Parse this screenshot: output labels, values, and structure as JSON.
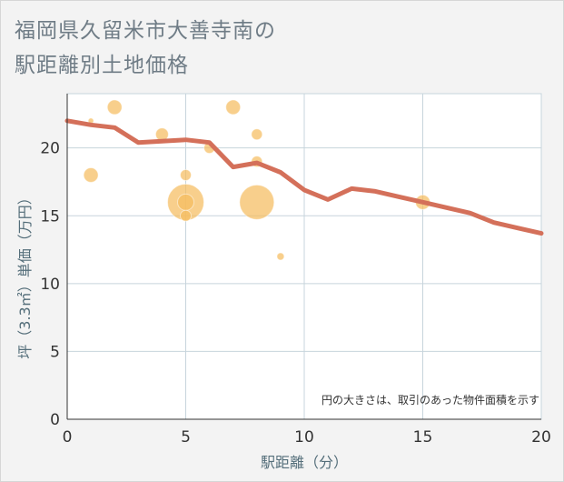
{
  "title_line1": "福岡県久留米市大善寺南の",
  "title_line2": "駅距離別土地価格",
  "chart_data": {
    "type": "scatter+line",
    "xlabel": "駅距離（分）",
    "ylabel": "坪（3.3㎡）単価（万円）",
    "xlim": [
      0,
      20
    ],
    "ylim": [
      0,
      24
    ],
    "x_ticks": [
      0,
      5,
      10,
      15,
      20
    ],
    "y_ticks": [
      0,
      5,
      10,
      15,
      20
    ],
    "note": "円の大きさは、取引のあった物件面積を示す",
    "scatter": [
      {
        "x": 1,
        "y": 22,
        "size": 3
      },
      {
        "x": 1,
        "y": 18,
        "size": 8
      },
      {
        "x": 2,
        "y": 23,
        "size": 8
      },
      {
        "x": 4,
        "y": 21,
        "size": 7
      },
      {
        "x": 5,
        "y": 18,
        "size": 6
      },
      {
        "x": 5,
        "y": 16,
        "size": 20
      },
      {
        "x": 5,
        "y": 16,
        "size": 9
      },
      {
        "x": 5,
        "y": 15,
        "size": 6
      },
      {
        "x": 6,
        "y": 20,
        "size": 6
      },
      {
        "x": 7,
        "y": 23,
        "size": 8
      },
      {
        "x": 8,
        "y": 21,
        "size": 6
      },
      {
        "x": 8,
        "y": 19,
        "size": 6
      },
      {
        "x": 8,
        "y": 16,
        "size": 19
      },
      {
        "x": 9,
        "y": 12,
        "size": 4
      },
      {
        "x": 15,
        "y": 16,
        "size": 8
      }
    ],
    "line": {
      "x": [
        0,
        1,
        2,
        3,
        4,
        5,
        6,
        7,
        8,
        9,
        10,
        11,
        12,
        13,
        14,
        15,
        16,
        17,
        18,
        19,
        20
      ],
      "y": [
        22.0,
        21.7,
        21.5,
        20.4,
        20.5,
        20.6,
        20.4,
        18.6,
        18.9,
        18.2,
        16.9,
        16.2,
        17.0,
        16.8,
        16.4,
        16.0,
        15.6,
        15.2,
        14.5,
        14.1,
        13.7
      ]
    },
    "colors": {
      "line": "#d4705a",
      "bubble": "#f5bc60",
      "grid": "#c7d4dc"
    }
  }
}
